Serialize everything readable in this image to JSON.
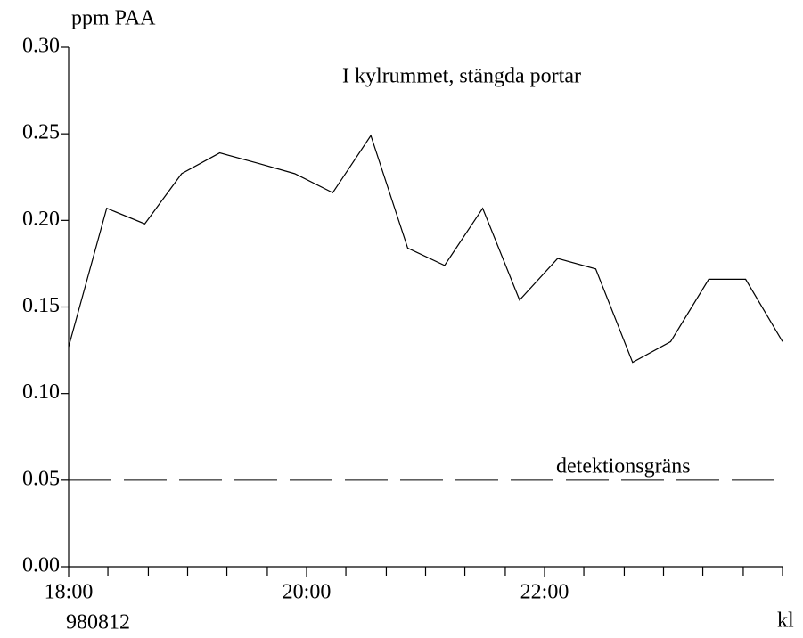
{
  "chart_data": {
    "type": "line",
    "title": "I kylrummet, stängda portar",
    "y_label": "ppm PAA",
    "x_label": "kl",
    "date_label": "980812",
    "xlim": [
      18,
      24
    ],
    "xticks": [
      {
        "value": 18,
        "label": "18:00"
      },
      {
        "value": 20,
        "label": "20:00"
      },
      {
        "value": 22,
        "label": "22:00"
      }
    ],
    "xminorticks": [
      18.33,
      18.67,
      19,
      19.33,
      19.67,
      20.33,
      20.67,
      21,
      21.33,
      21.67,
      22.33,
      22.67,
      23,
      23.33,
      23.67,
      24
    ],
    "ylim": [
      0,
      0.3
    ],
    "yticks": [
      {
        "value": 0,
        "label": "0.00"
      },
      0.05,
      {
        "value": 0.1,
        "label": "0.10"
      },
      0.15,
      {
        "value": 0.2,
        "label": "0.20"
      },
      0.25,
      {
        "value": 0.3,
        "label": "0.30"
      }
    ],
    "x": [
      18,
      18.32,
      18.64,
      18.95,
      19.27,
      19.59,
      19.9,
      20.22,
      20.54,
      20.85,
      21.16,
      21.48,
      21.79,
      22.11,
      22.43,
      22.74,
      23.06,
      23.38,
      23.69,
      24
    ],
    "series": [
      {
        "color": "#000000",
        "values": [
          0.127,
          0.207,
          0.198,
          0.227,
          0.239,
          0.233,
          0.227,
          0.216,
          0.249,
          0.184,
          0.174,
          0.207,
          0.154,
          0.178,
          0.172,
          0.118,
          0.13,
          0.166,
          0.166,
          0.13
        ]
      }
    ],
    "threshold": {
      "value": 0.05,
      "label": "detektionsgräns"
    }
  }
}
